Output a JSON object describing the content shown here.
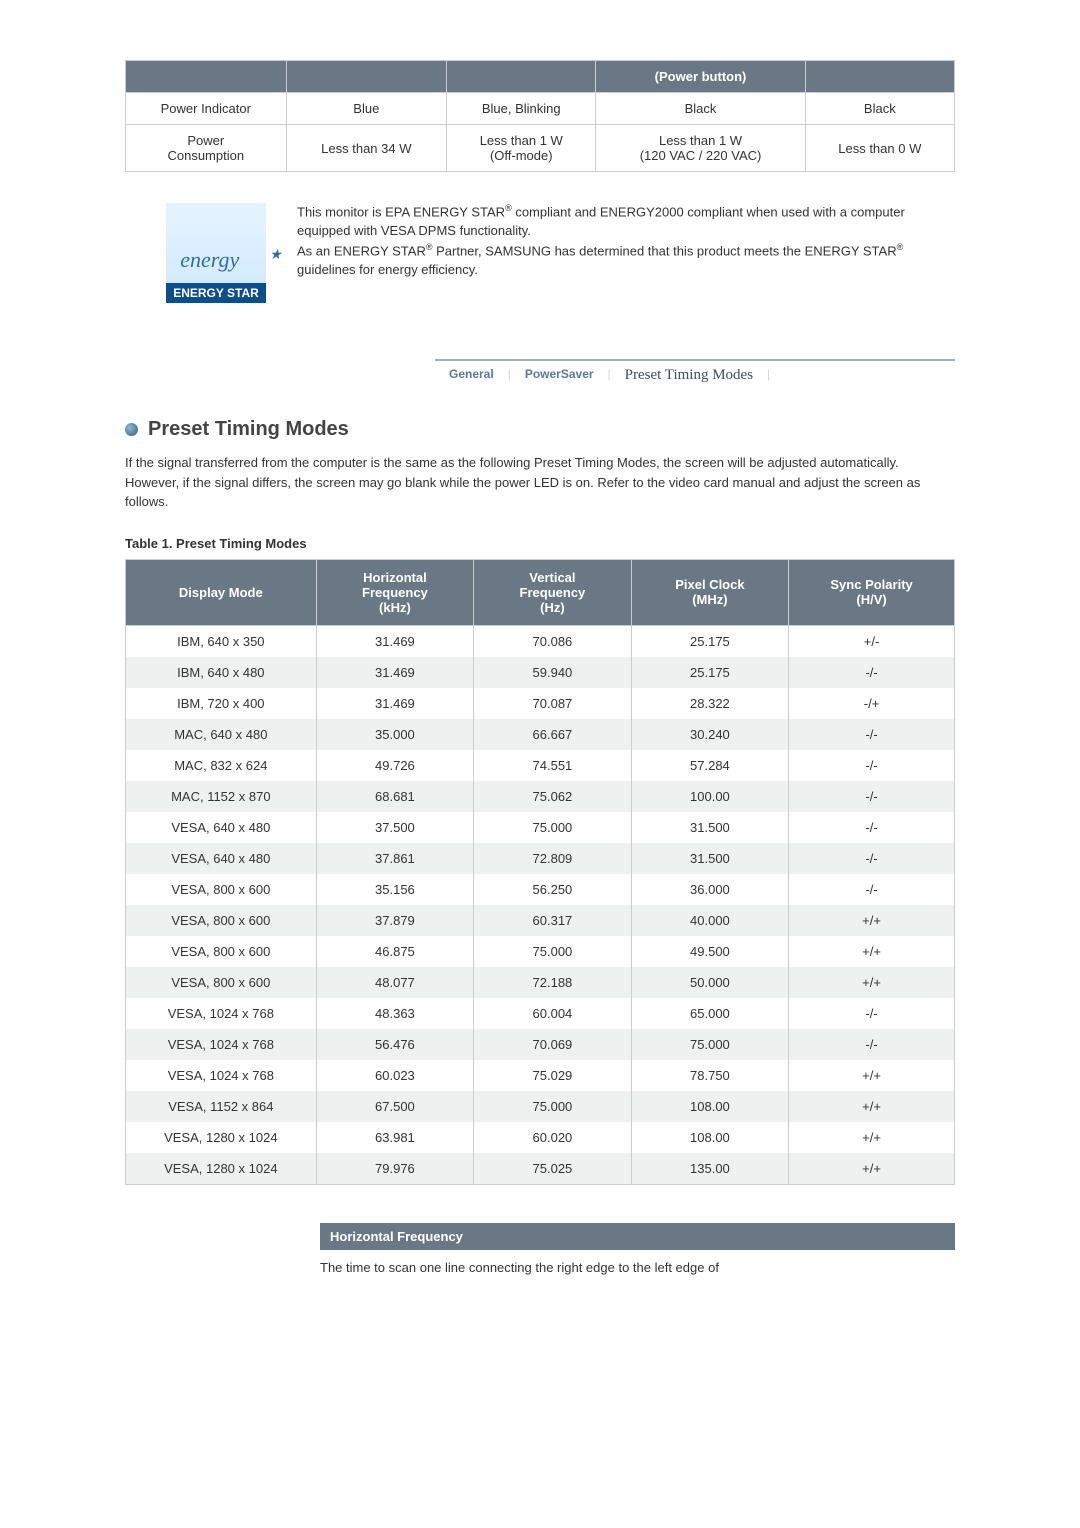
{
  "power_table": {
    "header_col4": "(Power button)",
    "rows": [
      {
        "c1": "Power Indicator",
        "c2": "Blue",
        "c3": "Blue, Blinking",
        "c4": "Black",
        "c5": "Black"
      },
      {
        "c1": "Power Consumption",
        "c2": "Less than 34 W",
        "c3": "Less than 1 W (Off-mode)",
        "c4": "Less than 1 W (120 VAC / 220 VAC)",
        "c5": "Less than 0 W"
      }
    ]
  },
  "energy_logo": {
    "script": "energy",
    "label": "ENERGY STAR"
  },
  "energy_text": {
    "p1a": "This monitor is EPA ENERGY STAR",
    "p1b": " compliant and ENERGY2000 compliant when used with a computer equipped with VESA DPMS functionality.",
    "p2a": "As an ENERGY STAR",
    "p2b": " Partner, SAMSUNG has determined that this product meets the ENERGY STAR",
    "p2c": " guidelines for energy efficiency."
  },
  "nav": {
    "general": "General",
    "powersaver": "PowerSaver",
    "preset": "Preset Timing Modes"
  },
  "section": {
    "title": "Preset Timing Modes",
    "para": "If the signal transferred from the computer is the same as the following Preset Timing Modes, the screen will be adjusted automatically. However, if the signal differs, the screen may go blank while the power LED is on. Refer to the video card manual and adjust the screen as follows.",
    "caption": "Table 1. Preset Timing Modes"
  },
  "timing_table": {
    "headers": {
      "c1": "Display Mode",
      "c2a": "Horizontal",
      "c2b": "Frequency",
      "c2c": "(kHz)",
      "c3a": "Vertical",
      "c3b": "Frequency",
      "c3c": "(Hz)",
      "c4a": "Pixel Clock",
      "c4b": "(MHz)",
      "c5a": "Sync Polarity",
      "c5b": "(H/V)"
    },
    "rows": [
      {
        "c1": "IBM, 640 x 350",
        "c2": "31.469",
        "c3": "70.086",
        "c4": "25.175",
        "c5": "+/-"
      },
      {
        "c1": "IBM, 640 x 480",
        "c2": "31.469",
        "c3": "59.940",
        "c4": "25.175",
        "c5": "-/-"
      },
      {
        "c1": "IBM, 720 x 400",
        "c2": "31.469",
        "c3": "70.087",
        "c4": "28.322",
        "c5": "-/+"
      },
      {
        "c1": "MAC, 640 x 480",
        "c2": "35.000",
        "c3": "66.667",
        "c4": "30.240",
        "c5": "-/-"
      },
      {
        "c1": "MAC, 832 x 624",
        "c2": "49.726",
        "c3": "74.551",
        "c4": "57.284",
        "c5": "-/-"
      },
      {
        "c1": "MAC, 1152 x 870",
        "c2": "68.681",
        "c3": "75.062",
        "c4": "100.00",
        "c5": "-/-"
      },
      {
        "c1": "VESA, 640 x 480",
        "c2": "37.500",
        "c3": "75.000",
        "c4": "31.500",
        "c5": "-/-"
      },
      {
        "c1": "VESA, 640 x 480",
        "c2": "37.861",
        "c3": "72.809",
        "c4": "31.500",
        "c5": "-/-"
      },
      {
        "c1": "VESA, 800 x 600",
        "c2": "35.156",
        "c3": "56.250",
        "c4": "36.000",
        "c5": "-/-"
      },
      {
        "c1": "VESA, 800 x 600",
        "c2": "37.879",
        "c3": "60.317",
        "c4": "40.000",
        "c5": "+/+"
      },
      {
        "c1": "VESA, 800 x 600",
        "c2": "46.875",
        "c3": "75.000",
        "c4": "49.500",
        "c5": "+/+"
      },
      {
        "c1": "VESA, 800 x 600",
        "c2": "48.077",
        "c3": "72.188",
        "c4": "50.000",
        "c5": "+/+"
      },
      {
        "c1": "VESA, 1024 x 768",
        "c2": "48.363",
        "c3": "60.004",
        "c4": "65.000",
        "c5": "-/-"
      },
      {
        "c1": "VESA, 1024 x 768",
        "c2": "56.476",
        "c3": "70.069",
        "c4": "75.000",
        "c5": "-/-"
      },
      {
        "c1": "VESA, 1024 x 768",
        "c2": "60.023",
        "c3": "75.029",
        "c4": "78.750",
        "c5": "+/+"
      },
      {
        "c1": "VESA, 1152 x 864",
        "c2": "67.500",
        "c3": "75.000",
        "c4": "108.00",
        "c5": "+/+"
      },
      {
        "c1": "VESA, 1280 x 1024",
        "c2": "63.981",
        "c3": "60.020",
        "c4": "108.00",
        "c5": "+/+"
      },
      {
        "c1": "VESA, 1280 x 1024",
        "c2": "79.976",
        "c3": "75.025",
        "c4": "135.00",
        "c5": "+/+"
      }
    ]
  },
  "hf": {
    "header": "Horizontal Frequency",
    "text": "The time to scan one line connecting the right edge to the left edge of"
  },
  "colors": {
    "table_header_bg": "#6a7885",
    "table_header_fg": "#ffffff",
    "row_alt_bg": "#eef1f0",
    "border": "#cccccc"
  }
}
